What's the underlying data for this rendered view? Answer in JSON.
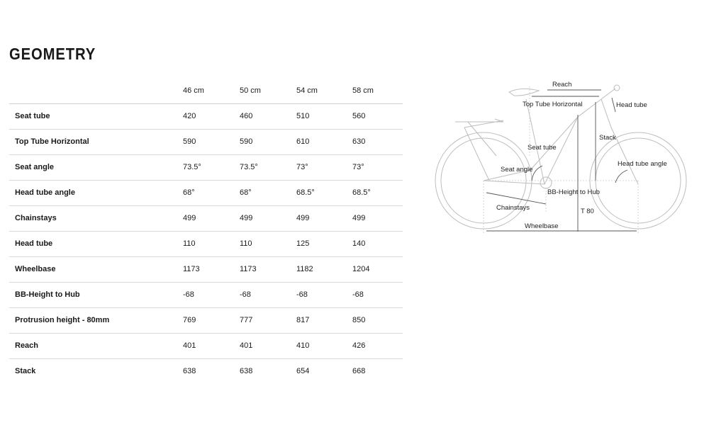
{
  "title": "GEOMETRY",
  "table": {
    "columns": [
      "46 cm",
      "50 cm",
      "54 cm",
      "58 cm"
    ],
    "rows": [
      {
        "label": "Seat tube",
        "values": [
          "420",
          "460",
          "510",
          "560"
        ]
      },
      {
        "label": "Top Tube Horizontal",
        "values": [
          "590",
          "590",
          "610",
          "630"
        ]
      },
      {
        "label": "Seat angle",
        "values": [
          "73.5°",
          "73.5°",
          "73°",
          "73°"
        ]
      },
      {
        "label": "Head tube angle",
        "values": [
          "68°",
          "68°",
          "68.5°",
          "68.5°"
        ]
      },
      {
        "label": "Chainstays",
        "values": [
          "499",
          "499",
          "499",
          "499"
        ]
      },
      {
        "label": "Head tube",
        "values": [
          "110",
          "110",
          "125",
          "140"
        ]
      },
      {
        "label": "Wheelbase",
        "values": [
          "1173",
          "1173",
          "1182",
          "1204"
        ]
      },
      {
        "label": "BB-Height to Hub",
        "values": [
          "-68",
          "-68",
          "-68",
          "-68"
        ]
      },
      {
        "label": "Protrusion height - 80mm",
        "values": [
          "769",
          "777",
          "817",
          "850"
        ]
      },
      {
        "label": "Reach",
        "values": [
          "401",
          "401",
          "410",
          "426"
        ]
      },
      {
        "label": "Stack",
        "values": [
          "638",
          "638",
          "654",
          "668"
        ]
      }
    ]
  },
  "diagram": {
    "labels": {
      "reach": "Reach",
      "top_tube": "Top Tube Horizontal",
      "head_tube": "Head tube",
      "stack": "Stack",
      "seat_tube": "Seat tube",
      "seat_angle": "Seat angle",
      "head_tube_angle": "Head tube angle",
      "bb_height": "BB-Height to Hub",
      "chainstays": "Chainstays",
      "t80": "T 80",
      "wheelbase": "Wheelbase"
    }
  }
}
